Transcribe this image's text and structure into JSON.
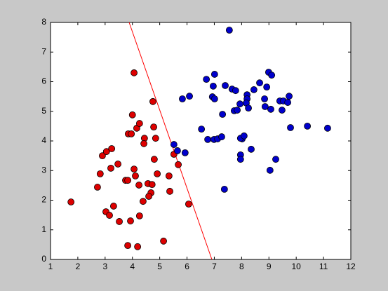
{
  "chart_data": {
    "type": "scatter",
    "series": [
      {
        "color": "#dd0000",
        "x": [
          1.75,
          4.06,
          4.75,
          4.0,
          4.78,
          3.85,
          3.96,
          4.16,
          4.26,
          4.44,
          4.42,
          4.85,
          2.9,
          3.05,
          3.24,
          3.47,
          3.21,
          2.82,
          2.72,
          3.75,
          3.83,
          4.06,
          4.11,
          4.24,
          4.57,
          4.72,
          4.8,
          4.91,
          5.34,
          5.68,
          5.52,
          5.37,
          4.68,
          4.6,
          4.39,
          3.03,
          3.31,
          3.16,
          3.52,
          3.93,
          4.26,
          6.06,
          3.83,
          4.19,
          5.14
        ],
        "values": [
          1.94,
          6.3,
          5.33,
          4.88,
          4.47,
          4.24,
          4.24,
          4.43,
          4.59,
          4.09,
          3.91,
          4.09,
          3.5,
          3.64,
          3.74,
          3.22,
          3.08,
          2.89,
          2.44,
          2.67,
          2.67,
          3.05,
          2.82,
          2.51,
          2.56,
          2.53,
          3.38,
          2.89,
          2.82,
          3.2,
          3.55,
          2.3,
          2.25,
          2.13,
          1.96,
          1.61,
          1.8,
          1.49,
          1.28,
          1.3,
          1.47,
          1.87,
          0.47,
          0.43,
          0.62
        ]
      },
      {
        "color": "#0000cc",
        "x": [
          7.55,
          7.01,
          6.71,
          6.09,
          5.83,
          6.96,
          6.93,
          7.01,
          7.4,
          7.65,
          7.78,
          7.73,
          7.84,
          7.3,
          7.94,
          8.2,
          8.2,
          8.17,
          8.25,
          8.45,
          8.66,
          8.99,
          9.1,
          8.92,
          8.84,
          8.86,
          9.07,
          9.4,
          9.53,
          9.74,
          9.69,
          9.48,
          9.79,
          10.41,
          11.15,
          6.53,
          6.76,
          6.99,
          7.12,
          7.27,
          8.02,
          7.96,
          8.09,
          7.96,
          7.96,
          8.35,
          9.25,
          9.04,
          7.37,
          5.52,
          5.65,
          5.93
        ],
        "values": [
          7.74,
          6.25,
          6.08,
          5.51,
          5.42,
          5.85,
          5.49,
          5.42,
          5.87,
          5.75,
          5.7,
          5.02,
          5.04,
          4.9,
          5.25,
          5.56,
          5.42,
          5.28,
          5.11,
          5.73,
          5.96,
          6.32,
          6.22,
          5.82,
          5.42,
          5.16,
          5.07,
          5.35,
          5.35,
          5.51,
          5.3,
          5.04,
          4.45,
          4.5,
          4.43,
          4.4,
          4.05,
          4.05,
          4.07,
          4.14,
          4.07,
          4.09,
          4.17,
          3.53,
          3.38,
          3.72,
          3.38,
          3.01,
          2.37,
          3.88,
          3.67,
          3.6
        ]
      }
    ],
    "line": {
      "color": "#ff0000",
      "x": [
        3.88,
        6.91
      ],
      "values": [
        8,
        0
      ]
    },
    "xlim": [
      1,
      12
    ],
    "xticks": [
      1,
      2,
      3,
      4,
      5,
      6,
      7,
      8,
      9,
      10,
      11,
      12
    ],
    "ylim": [
      0,
      8
    ],
    "yticks": [
      0,
      1,
      2,
      3,
      4,
      5,
      6,
      7,
      8
    ]
  }
}
